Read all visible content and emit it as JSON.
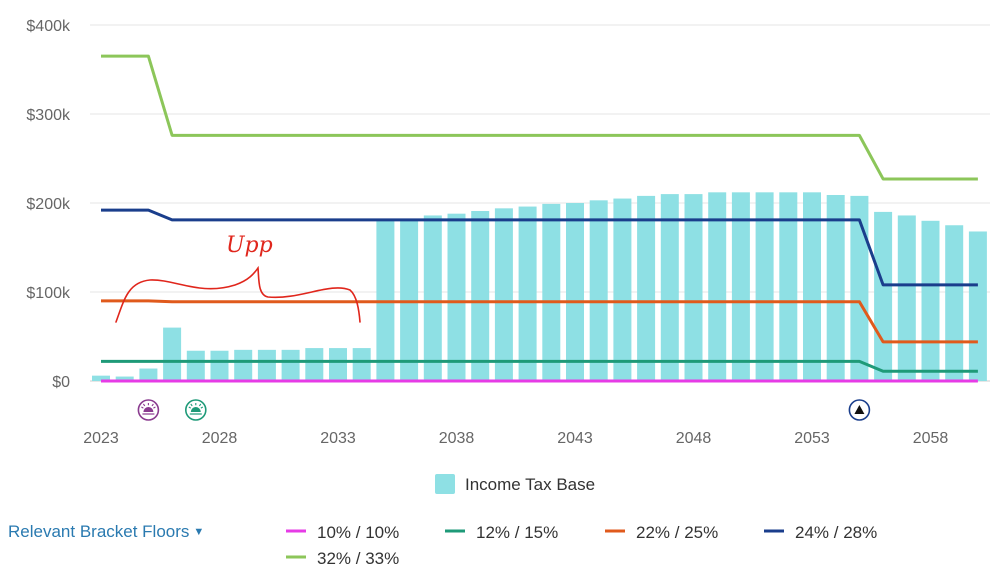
{
  "chart_data": {
    "type": "bar",
    "x": [
      2023,
      2024,
      2025,
      2026,
      2027,
      2028,
      2029,
      2030,
      2031,
      2032,
      2033,
      2034,
      2035,
      2036,
      2037,
      2038,
      2039,
      2040,
      2041,
      2042,
      2043,
      2044,
      2045,
      2046,
      2047,
      2048,
      2049,
      2050,
      2051,
      2052,
      2053,
      2054,
      2055,
      2056,
      2057,
      2058,
      2059,
      2060
    ],
    "xticks": [
      "2023",
      "2028",
      "2033",
      "2038",
      "2043",
      "2048",
      "2053",
      "2058"
    ],
    "xtick_values": [
      2023,
      2028,
      2033,
      2038,
      2043,
      2048,
      2053,
      2058
    ],
    "yticks": [
      "$0",
      "$100k",
      "$200k",
      "$300k",
      "$400k"
    ],
    "ytick_values": [
      0,
      100000,
      200000,
      300000,
      400000
    ],
    "ylim": [
      0,
      400000
    ],
    "grid": true,
    "bar_series": {
      "name": "Income Tax Base",
      "color": "#8ee0e4",
      "values": [
        6000,
        5000,
        14000,
        60000,
        34000,
        34000,
        35000,
        35000,
        35000,
        37000,
        37000,
        37000,
        180000,
        182000,
        186000,
        188000,
        191000,
        194000,
        196000,
        199000,
        200000,
        203000,
        205000,
        208000,
        210000,
        210000,
        212000,
        212000,
        212000,
        212000,
        212000,
        209000,
        208000,
        190000,
        186000,
        180000,
        175000,
        168000
      ]
    },
    "series": [
      {
        "name": "10% / 10%",
        "color": "#e63be6",
        "x": [
          2023,
          2060
        ],
        "values": [
          0,
          0
        ]
      },
      {
        "name": "12% / 15%",
        "color": "#1e9a78",
        "x": [
          2023,
          2025,
          2026,
          2055,
          2056,
          2060
        ],
        "values": [
          22000,
          22000,
          22000,
          22000,
          11000,
          11000
        ]
      },
      {
        "name": "22% / 25%",
        "color": "#e05a1c",
        "x": [
          2023,
          2025,
          2026,
          2055,
          2056,
          2060
        ],
        "values": [
          90000,
          90000,
          89000,
          89000,
          44000,
          44000
        ]
      },
      {
        "name": "24% / 28%",
        "color": "#1a3e8c",
        "x": [
          2023,
          2025,
          2026,
          2055,
          2056,
          2060
        ],
        "values": [
          192000,
          192000,
          181000,
          181000,
          108000,
          108000
        ]
      },
      {
        "name": "32% / 33%",
        "color": "#8cc65a",
        "x": [
          2023,
          2025,
          2026,
          2055,
          2056,
          2060
        ],
        "values": [
          365000,
          365000,
          276000,
          276000,
          227000,
          227000
        ]
      }
    ],
    "event_markers": [
      {
        "x": 2025,
        "icon": "sunset-icon",
        "color": "#8a3b8f"
      },
      {
        "x": 2027,
        "icon": "sunrise-icon",
        "color": "#1e9a78"
      },
      {
        "x": 2055,
        "icon": "triangle-icon",
        "color": "#1a3e8c"
      }
    ],
    "annotation": {
      "text": "Upp",
      "color": "#e0261c"
    },
    "legend": {
      "position": "bottom"
    }
  },
  "controls": {
    "bracket_dropdown_label": "Relevant Bracket Floors",
    "caret": "▼"
  }
}
